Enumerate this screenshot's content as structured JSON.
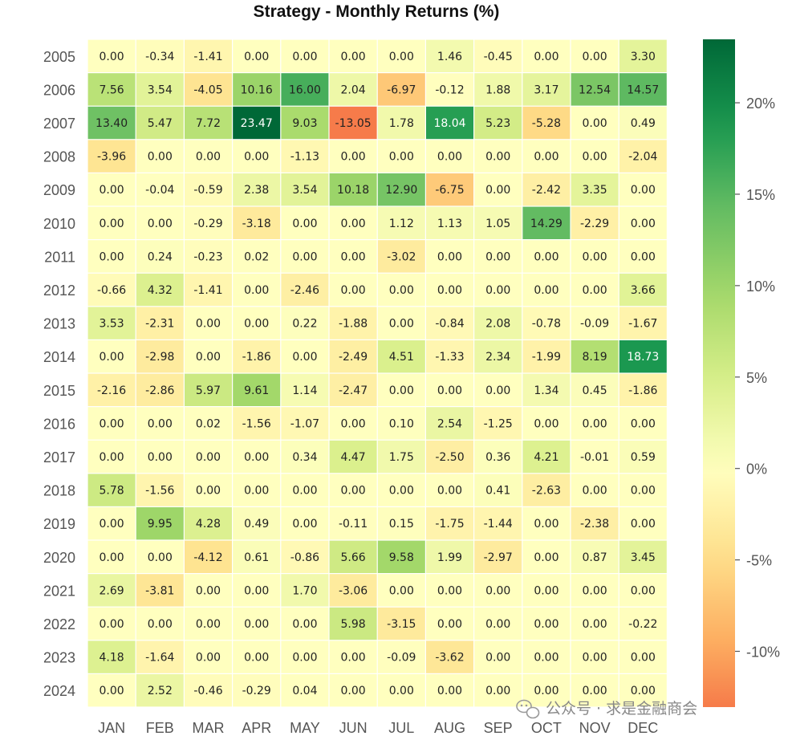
{
  "watermark": "公众号 · 求是金融商会",
  "chart_data": {
    "type": "heatmap",
    "title": "Strategy - Monthly Returns (%)",
    "columns": [
      "JAN",
      "FEB",
      "MAR",
      "APR",
      "MAY",
      "JUN",
      "JUL",
      "AUG",
      "SEP",
      "OCT",
      "NOV",
      "DEC"
    ],
    "rows": [
      "2005",
      "2006",
      "2007",
      "2008",
      "2009",
      "2010",
      "2011",
      "2012",
      "2013",
      "2014",
      "2015",
      "2016",
      "2017",
      "2018",
      "2019",
      "2020",
      "2021",
      "2022",
      "2023",
      "2024"
    ],
    "values": [
      [
        "0.00",
        "-0.34",
        "-1.41",
        "0.00",
        "0.00",
        "0.00",
        "0.00",
        "1.46",
        "-0.45",
        "0.00",
        "0.00",
        "3.30"
      ],
      [
        "7.56",
        "3.54",
        "-4.05",
        "10.16",
        "16.00",
        "2.04",
        "-6.97",
        "-0.12",
        "1.88",
        "3.17",
        "12.54",
        "14.57"
      ],
      [
        "13.40",
        "5.47",
        "7.72",
        "23.47",
        "9.03",
        "-13.05",
        "1.78",
        "18.04",
        "5.23",
        "-5.28",
        "0.00",
        "0.49"
      ],
      [
        "-3.96",
        "0.00",
        "0.00",
        "0.00",
        "-1.13",
        "0.00",
        "0.00",
        "0.00",
        "0.00",
        "0.00",
        "0.00",
        "-2.04"
      ],
      [
        "0.00",
        "-0.04",
        "-0.59",
        "2.38",
        "3.54",
        "10.18",
        "12.90",
        "-6.75",
        "0.00",
        "-2.42",
        "3.35",
        "0.00"
      ],
      [
        "0.00",
        "0.00",
        "-0.29",
        "-3.18",
        "0.00",
        "0.00",
        "1.12",
        "1.13",
        "1.05",
        "14.29",
        "-2.29",
        "0.00"
      ],
      [
        "0.00",
        "0.24",
        "-0.23",
        "0.02",
        "0.00",
        "0.00",
        "-3.02",
        "0.00",
        "0.00",
        "0.00",
        "0.00",
        "0.00"
      ],
      [
        "-0.66",
        "4.32",
        "-1.41",
        "0.00",
        "-2.46",
        "0.00",
        "0.00",
        "0.00",
        "0.00",
        "0.00",
        "0.00",
        "3.66"
      ],
      [
        "3.53",
        "-2.31",
        "0.00",
        "0.00",
        "0.22",
        "-1.88",
        "0.00",
        "-0.84",
        "2.08",
        "-0.78",
        "-0.09",
        "-1.67"
      ],
      [
        "0.00",
        "-2.98",
        "0.00",
        "-1.86",
        "0.00",
        "-2.49",
        "4.51",
        "-1.33",
        "2.34",
        "-1.99",
        "8.19",
        "18.73"
      ],
      [
        "-2.16",
        "-2.86",
        "5.97",
        "9.61",
        "1.14",
        "-2.47",
        "0.00",
        "0.00",
        "0.00",
        "1.34",
        "0.45",
        "-1.86"
      ],
      [
        "0.00",
        "0.00",
        "0.02",
        "-1.56",
        "-1.07",
        "0.00",
        "0.10",
        "2.54",
        "-1.25",
        "0.00",
        "0.00",
        "0.00"
      ],
      [
        "0.00",
        "0.00",
        "0.00",
        "0.00",
        "0.34",
        "4.47",
        "1.75",
        "-2.50",
        "0.36",
        "4.21",
        "-0.01",
        "0.59"
      ],
      [
        "5.78",
        "-1.56",
        "0.00",
        "0.00",
        "0.00",
        "0.00",
        "0.00",
        "0.00",
        "0.41",
        "-2.63",
        "0.00",
        "0.00"
      ],
      [
        "0.00",
        "9.95",
        "4.28",
        "0.49",
        "0.00",
        "-0.11",
        "0.15",
        "-1.75",
        "-1.44",
        "0.00",
        "-2.38",
        "0.00"
      ],
      [
        "0.00",
        "0.00",
        "-4.12",
        "0.61",
        "-0.86",
        "5.66",
        "9.58",
        "1.99",
        "-2.97",
        "0.00",
        "0.87",
        "3.45"
      ],
      [
        "2.69",
        "-3.81",
        "0.00",
        "0.00",
        "1.70",
        "-3.06",
        "0.00",
        "0.00",
        "0.00",
        "0.00",
        "0.00",
        "0.00"
      ],
      [
        "0.00",
        "0.00",
        "0.00",
        "0.00",
        "0.00",
        "5.98",
        "-3.15",
        "0.00",
        "0.00",
        "0.00",
        "0.00",
        "-0.22"
      ],
      [
        "4.18",
        "-1.64",
        "0.00",
        "0.00",
        "0.00",
        "0.00",
        "-0.09",
        "-3.62",
        "0.00",
        "0.00",
        "0.00",
        "0.00"
      ],
      [
        "0.00",
        "2.52",
        "-0.46",
        "-0.29",
        "0.04",
        "0.00",
        "0.00",
        "0.00",
        "0.00",
        "0.00",
        "0.00",
        "0.00"
      ]
    ],
    "colorbar": {
      "min": -13.05,
      "max": 23.47,
      "ticks": [
        20,
        15,
        10,
        5,
        0,
        -5,
        -10
      ],
      "tick_labels": [
        "20%",
        "15%",
        "10%",
        "5%",
        "0%",
        "-5%",
        "-10%"
      ],
      "colormap": "RdYlGn",
      "center": 0
    }
  }
}
